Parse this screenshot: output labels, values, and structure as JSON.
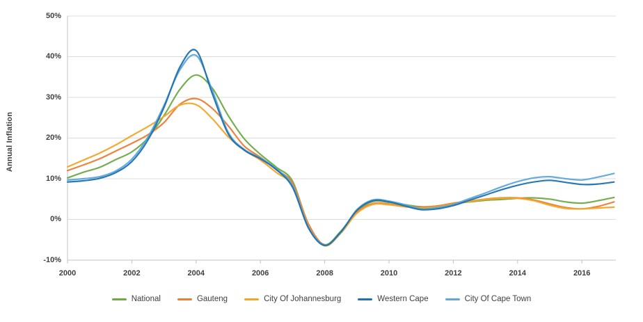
{
  "chart": {
    "y_axis_title": "Annual Inflation"
  },
  "colors": {
    "background": "#ffffff",
    "gridline": "#dcdcdc",
    "axis_line": "#c3c3c3",
    "tick_mark": "#bfbfbf",
    "axis_text": "#3f3f3f",
    "legend_text": "#404040"
  },
  "chart_data": {
    "type": "line",
    "title": "",
    "xlabel": "",
    "ylabel": "Annual Inflation",
    "grid": "horizontal",
    "legend_position": "bottom",
    "xlim": [
      2000,
      2017
    ],
    "ylim": [
      -10,
      50
    ],
    "y_ticks": [
      50,
      40,
      30,
      20,
      10,
      0,
      -10
    ],
    "y_tick_labels": [
      "50%",
      "40%",
      "30%",
      "20%",
      "10%",
      "0%",
      "-10%"
    ],
    "x_tick_values": [
      2000,
      2002,
      2004,
      2006,
      2008,
      2010,
      2012,
      2014,
      2016
    ],
    "x_tick_labels": [
      "2000",
      "2002",
      "2004",
      "2006",
      "2008",
      "2010",
      "2012",
      "2014",
      "2016"
    ],
    "x_start": 2000,
    "x_step": 0.5,
    "x": [
      2000,
      2000.5,
      2001,
      2001.5,
      2002,
      2002.5,
      2003,
      2003.5,
      2004,
      2004.5,
      2005,
      2005.5,
      2006,
      2006.5,
      2007,
      2007.5,
      2008,
      2008.5,
      2009,
      2009.5,
      2010,
      2010.5,
      2011,
      2011.5,
      2012,
      2012.5,
      2013,
      2013.5,
      2014,
      2014.5,
      2015,
      2015.5,
      2016,
      2016.5,
      2017
    ],
    "series": [
      {
        "name": "National",
        "color": "#6bab43",
        "values": [
          10.2,
          11.6,
          12.8,
          14.7,
          16.6,
          20.0,
          25.5,
          32.0,
          35.5,
          32.3,
          25.5,
          19.8,
          16.0,
          12.8,
          9.4,
          -1.5,
          -6.2,
          -2.9,
          2.0,
          4.4,
          4.2,
          3.6,
          3.1,
          3.3,
          3.9,
          4.3,
          4.7,
          4.9,
          5.2,
          5.3,
          5.0,
          4.3,
          4.0,
          4.6,
          5.4
        ]
      },
      {
        "name": "Gauteng",
        "color": "#ed7d31",
        "values": [
          12.0,
          13.4,
          14.9,
          16.8,
          18.7,
          20.8,
          23.8,
          28.3,
          29.7,
          27.3,
          23.0,
          18.0,
          15.3,
          12.2,
          8.9,
          -1.2,
          -6.3,
          -3.2,
          1.8,
          3.9,
          3.8,
          3.3,
          3.0,
          3.3,
          4.0,
          4.5,
          5.0,
          5.3,
          5.3,
          4.8,
          3.8,
          2.9,
          2.6,
          3.2,
          4.3
        ]
      },
      {
        "name": "City Of Johannesburg",
        "color": "#f5a425",
        "values": [
          12.9,
          14.6,
          16.3,
          18.3,
          20.6,
          22.8,
          25.3,
          28.1,
          28.2,
          24.8,
          20.3,
          17.0,
          14.6,
          11.5,
          8.3,
          -1.8,
          -6.5,
          -3.4,
          1.5,
          3.7,
          3.6,
          3.1,
          2.8,
          3.1,
          3.8,
          4.4,
          4.9,
          5.2,
          5.2,
          4.6,
          3.5,
          2.7,
          2.6,
          2.8,
          3.0
        ]
      },
      {
        "name": "Western Cape",
        "color": "#1f72b0",
        "values": [
          9.2,
          9.5,
          10.1,
          11.5,
          14.2,
          19.5,
          27.5,
          37.5,
          41.5,
          31.0,
          21.0,
          17.0,
          14.9,
          12.2,
          7.9,
          -2.2,
          -6.4,
          -3.1,
          2.2,
          4.6,
          4.3,
          3.3,
          2.4,
          2.6,
          3.4,
          4.7,
          6.0,
          7.3,
          8.4,
          9.2,
          9.6,
          9.1,
          8.6,
          8.7,
          9.2
        ]
      },
      {
        "name": "City Of Cape Town",
        "color": "#5ea7d8",
        "values": [
          9.7,
          10.0,
          10.5,
          11.9,
          14.8,
          20.2,
          28.0,
          36.8,
          40.3,
          31.8,
          21.4,
          17.2,
          15.1,
          12.4,
          8.3,
          -2.0,
          -6.3,
          -3.2,
          2.4,
          4.8,
          4.5,
          3.6,
          2.6,
          2.9,
          3.7,
          5.1,
          6.5,
          8.0,
          9.3,
          10.2,
          10.5,
          10.0,
          9.7,
          10.4,
          11.3
        ]
      }
    ]
  }
}
